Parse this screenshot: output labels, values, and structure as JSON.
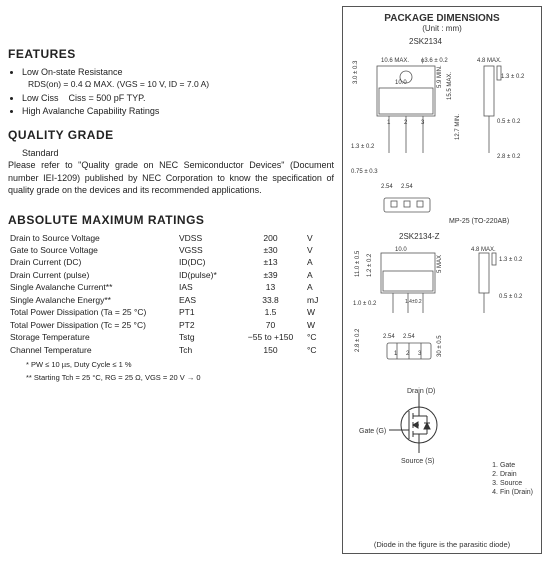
{
  "features": {
    "heading": "FEATURES",
    "items": [
      "Low On-state Resistance",
      "Low Ciss",
      "High Avalanche Capability Ratings"
    ],
    "rds_line": "RDS(on) = 0.4 Ω MAX. (VGS = 10 V, ID = 7.0 A)",
    "ciss_line": "Ciss = 500 pF TYP."
  },
  "quality": {
    "heading": "QUALITY GRADE",
    "grade": "Standard",
    "body": "Please refer to \"Quality grade on NEC Semiconductor Devices\" (Document number IEI-1209) published by NEC Corporation to know the specification of quality grade on the devices and its recommended applications."
  },
  "amr": {
    "heading": "ABSOLUTE MAXIMUM RATINGS",
    "rows": [
      {
        "p": "Drain to Source Voltage",
        "s": "VDSS",
        "v": "200",
        "u": "V"
      },
      {
        "p": "Gate to Source Voltage",
        "s": "VGSS",
        "v": "±30",
        "u": "V"
      },
      {
        "p": "Drain Current (DC)",
        "s": "ID(DC)",
        "v": "±13",
        "u": "A"
      },
      {
        "p": "Drain Current (pulse)",
        "s": "ID(pulse)*",
        "v": "±39",
        "u": "A"
      },
      {
        "p": "Single Avalanche Current**",
        "s": "IAS",
        "v": "13",
        "u": "A"
      },
      {
        "p": "Single Avalanche Energy**",
        "s": "EAS",
        "v": "33.8",
        "u": "mJ"
      },
      {
        "p": "Total Power Dissipation (Ta = 25 °C)",
        "s": "PT1",
        "v": "1.5",
        "u": "W"
      },
      {
        "p": "Total Power Dissipation (Tc = 25 °C)",
        "s": "PT2",
        "v": "70",
        "u": "W"
      },
      {
        "p": "Storage Temperature",
        "s": "Tstg",
        "v": "−55 to +150",
        "u": "°C"
      },
      {
        "p": "Channel Temperature",
        "s": "Tch",
        "v": "150",
        "u": "°C"
      }
    ],
    "fn1": "* PW ≤ 10 µs, Duty Cycle ≤ 1 %",
    "fn2": "** Starting Tch = 25 °C, RG = 25 Ω, VGS = 20 V → 0"
  },
  "pkg": {
    "title": "PACKAGE DIMENSIONS",
    "unit": "(Unit : mm)",
    "part1": "2SK2134",
    "part2": "2SK2134-Z",
    "mp": "MP-25 (TO-220AB)",
    "dims": {
      "a": "10.6 MAX.",
      "b": "ϕ3.6 ± 0.2",
      "c": "4.8 MAX.",
      "d": "1.3 ± 0.2",
      "e": "3.0 ± 0.3",
      "f": "10.0",
      "g": "5.9 MIN.",
      "h": "15.5 MAX.",
      "i": "1.3 ± 0.2",
      "j": "12.7 MIN.",
      "k": "0.5 ± 0.2",
      "l": "0.75 ± 0.3",
      "m": "2.54",
      "n": "2.54",
      "o": "2.8 ± 0.2",
      "p": "1.0 ± 0.2",
      "q": "2.8 ± 0.2",
      "r": "11.0 ± 0.5",
      "s": "30 ± 0.5",
      "t": "1.2 ± 0.2",
      "u": "5 MAX",
      "v": "1.4±0.2"
    },
    "pins": [
      "1",
      "2",
      "3"
    ],
    "terminals": {
      "d": "Drain (D)",
      "g": "Gate (G)",
      "s": "Source (S)"
    },
    "pinlist": [
      "1. Gate",
      "2. Drain",
      "3. Source",
      "4. Fin (Drain)"
    ],
    "diode_note": "(Diode in the figure is the parasitic diode)"
  }
}
